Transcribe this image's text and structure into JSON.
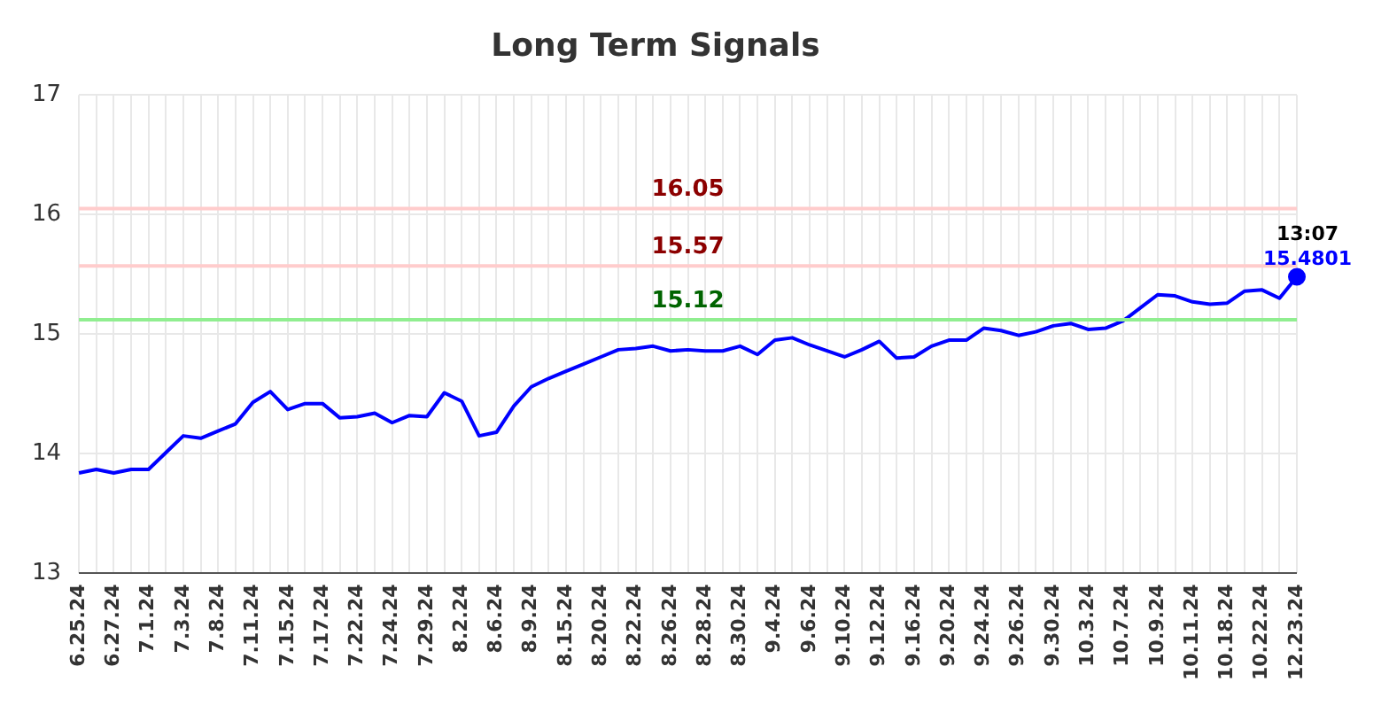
{
  "chart_data": {
    "type": "line",
    "title": "Long Term Signals",
    "categories": [
      "6.25.24",
      null,
      "6.27.24",
      null,
      "7.1.24",
      null,
      "7.3.24",
      null,
      "7.8.24",
      null,
      "7.11.24",
      null,
      "7.15.24",
      null,
      "7.17.24",
      null,
      "7.22.24",
      null,
      "7.24.24",
      null,
      "7.29.24",
      null,
      "8.2.24",
      null,
      "8.6.24",
      null,
      "8.9.24",
      null,
      "8.15.24",
      null,
      "8.20.24",
      null,
      "8.22.24",
      null,
      "8.26.24",
      null,
      "8.28.24",
      null,
      "8.30.24",
      null,
      "9.4.24",
      null,
      "9.6.24",
      null,
      "9.10.24",
      null,
      "9.12.24",
      null,
      "9.16.24",
      null,
      "9.20.24",
      null,
      "9.24.24",
      null,
      "9.26.24",
      null,
      "9.30.24",
      null,
      "10.3.24",
      null,
      "10.7.24",
      null,
      "10.9.24",
      null,
      "10.11.24",
      null,
      "10.18.24",
      null,
      "10.22.24",
      null,
      "12.23.24"
    ],
    "series": [
      {
        "color": "#0000ff",
        "values": [
          13.84,
          13.87,
          13.84,
          13.87,
          13.87,
          14.01,
          14.15,
          14.13,
          14.19,
          14.25,
          14.43,
          14.52,
          14.37,
          14.42,
          14.42,
          14.3,
          14.31,
          14.34,
          14.26,
          14.32,
          14.31,
          14.51,
          14.44,
          14.15,
          14.18,
          14.4,
          14.56,
          14.63,
          14.69,
          14.75,
          14.81,
          14.87,
          14.88,
          14.9,
          14.86,
          14.87,
          14.86,
          14.86,
          14.9,
          14.83,
          14.95,
          14.97,
          14.91,
          14.86,
          14.81,
          14.87,
          14.94,
          14.8,
          14.81,
          14.9,
          14.95,
          14.95,
          15.05,
          15.03,
          14.99,
          15.02,
          15.07,
          15.09,
          15.04,
          15.05,
          15.11,
          15.22,
          15.33,
          15.32,
          15.27,
          15.25,
          15.26,
          15.36,
          15.37,
          15.3,
          15.4801
        ],
        "value_labels": [
          null,
          null,
          null,
          null,
          null,
          null,
          null,
          null,
          null,
          null,
          null,
          null,
          null,
          null,
          null,
          null,
          null,
          null,
          null,
          null,
          null,
          null,
          null,
          null,
          null,
          null,
          null,
          null,
          null,
          null,
          null,
          null,
          null,
          null,
          null,
          null,
          null,
          null,
          null,
          null,
          null,
          null,
          null,
          null,
          null,
          null,
          null,
          null,
          null,
          null,
          null,
          null,
          null,
          null,
          null,
          null,
          null,
          null,
          null,
          null,
          null,
          null,
          null,
          null,
          null,
          null,
          null,
          null,
          null,
          null,
          "15.4801"
        ]
      }
    ],
    "ylim": [
      13,
      17
    ],
    "yticks": [
      13,
      14,
      15,
      16,
      17
    ],
    "grid": true,
    "legend": false,
    "ref_lines": [
      {
        "axis": "y",
        "value": 16.05,
        "label": "16.05",
        "color": "#ffcccc"
      },
      {
        "axis": "y",
        "value": 15.57,
        "label": "15.57",
        "color": "#ffcccc"
      },
      {
        "axis": "y",
        "value": 15.12,
        "label": "15.12",
        "color": "#90ee90"
      }
    ],
    "annotations": [
      {
        "text": "13:07",
        "x": "12.23.24",
        "y": 15.4801
      }
    ]
  }
}
